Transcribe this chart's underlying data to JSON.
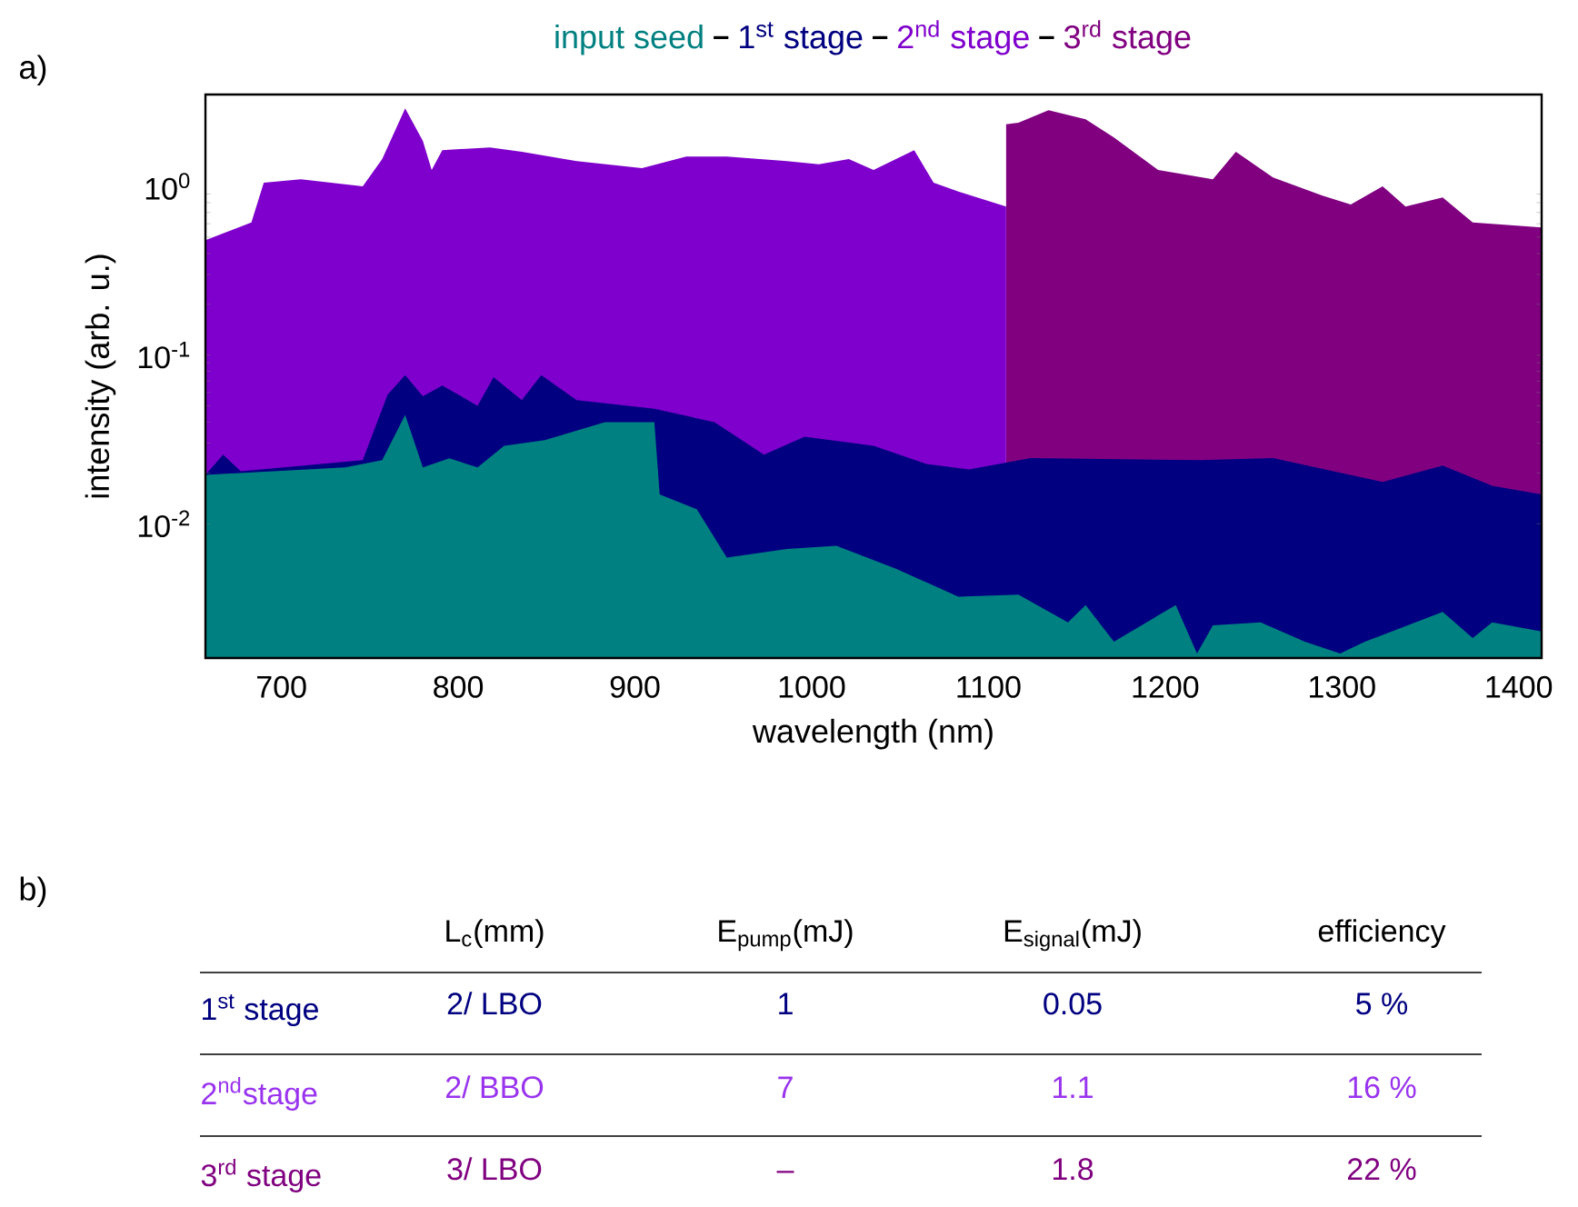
{
  "chart_data": [
    {
      "type": "area",
      "xlabel": "wavelength (nm)",
      "ylabel": "intensity (arb. u.)",
      "log": "y",
      "grid": false,
      "annotations": [
        "a)"
      ],
      "xlim": [
        657,
        1413
      ],
      "ylim": [
        0.0016,
        3.5
      ],
      "xticks": [
        700,
        800,
        900,
        1000,
        1100,
        1200,
        1300,
        1400
      ],
      "yticks": [
        {
          "value": 0.01,
          "label": "10$^{-2}$"
        },
        {
          "value": 0.1,
          "label": "10$^{-1}$"
        },
        {
          "value": 1,
          "label": "10$^{0}$"
        }
      ],
      "series": [
        {
          "name": "input seed",
          "color": "#008080",
          "x": [
            657,
            736,
            757,
            770,
            780,
            795,
            811,
            826,
            849,
            883,
            911,
            914,
            935,
            952,
            986,
            1014,
            1048,
            1083,
            1117,
            1145,
            1155,
            1171,
            1206,
            1218,
            1227,
            1254,
            1279,
            1299,
            1313,
            1357,
            1374,
            1385,
            1413
          ],
          "values": [
            0.0195,
            0.0216,
            0.0238,
            0.0442,
            0.0216,
            0.0244,
            0.0216,
            0.029,
            0.0313,
            0.04,
            0.04,
            0.0149,
            0.0122,
            0.0063,
            0.0071,
            0.0074,
            0.0054,
            0.0037,
            0.0038,
            0.0026,
            0.0033,
            0.002,
            0.0033,
            0.0017,
            0.0025,
            0.0026,
            0.002,
            0.0017,
            0.002,
            0.003,
            0.0021,
            0.0026,
            0.0023
          ]
        },
        {
          "name": "1$^{st}$ stage",
          "color": "#000080",
          "x": [
            657,
            667,
            677,
            746,
            760,
            770,
            780,
            791,
            811,
            820,
            836,
            847,
            867,
            911,
            945,
            973,
            996,
            1035,
            1065,
            1089,
            1124,
            1220,
            1261,
            1323,
            1357,
            1385,
            1413
          ],
          "values": [
            0.0195,
            0.0257,
            0.0205,
            0.0238,
            0.058,
            0.076,
            0.057,
            0.066,
            0.05,
            0.074,
            0.054,
            0.076,
            0.054,
            0.048,
            0.04,
            0.0257,
            0.0328,
            0.029,
            0.0226,
            0.021,
            0.0245,
            0.0238,
            0.0245,
            0.0177,
            0.0221,
            0.0168,
            0.0149
          ]
        },
        {
          "name": "2$^{nd}$ stage",
          "color": "#7f00cc",
          "x": [
            657,
            683,
            690,
            711,
            746,
            757,
            770,
            780,
            785,
            791,
            818,
            836,
            867,
            904,
            929,
            952,
            986,
            1004,
            1021,
            1035,
            1058,
            1069,
            1083,
            1110
          ],
          "values": [
            0.48,
            0.61,
            1.05,
            1.1,
            1.0,
            1.45,
            2.9,
            1.86,
            1.25,
            1.64,
            1.7,
            1.6,
            1.41,
            1.28,
            1.5,
            1.5,
            1.41,
            1.35,
            1.45,
            1.25,
            1.64,
            1.05,
            0.93,
            0.76
          ]
        },
        {
          "name": "3$^{rd}$ stage",
          "color": "#800080",
          "x": [
            1110,
            1117,
            1134,
            1155,
            1171,
            1196,
            1227,
            1240,
            1261,
            1289,
            1305,
            1323,
            1336,
            1357,
            1374,
            1413
          ],
          "values": [
            2.33,
            2.38,
            2.83,
            2.5,
            1.95,
            1.25,
            1.1,
            1.6,
            1.13,
            0.88,
            0.78,
            1.0,
            0.76,
            0.86,
            0.61,
            0.57
          ]
        }
      ]
    },
    {
      "type": "other",
      "annotations": [
        "b)"
      ],
      "categories": [
        null,
        "L$_{c}$(mm)",
        "E$_{pump}$(mJ)",
        "E$_{signal}$(mJ)",
        "efficiency"
      ],
      "y_categories": [
        "1$^{st}$ stage",
        "2$^{nd}$stage",
        "3$^{rd}$ stage"
      ],
      "colors": [
        "#000080",
        "#9933ee",
        "#800080"
      ],
      "cell_labels": [
        [
          "2/ LBO",
          "1",
          "0.05",
          "5 %"
        ],
        [
          "2/ BBO",
          "7",
          "1.1",
          "16 %"
        ],
        [
          "3/ LBO",
          "–",
          "1.8",
          "22 %"
        ]
      ]
    }
  ]
}
